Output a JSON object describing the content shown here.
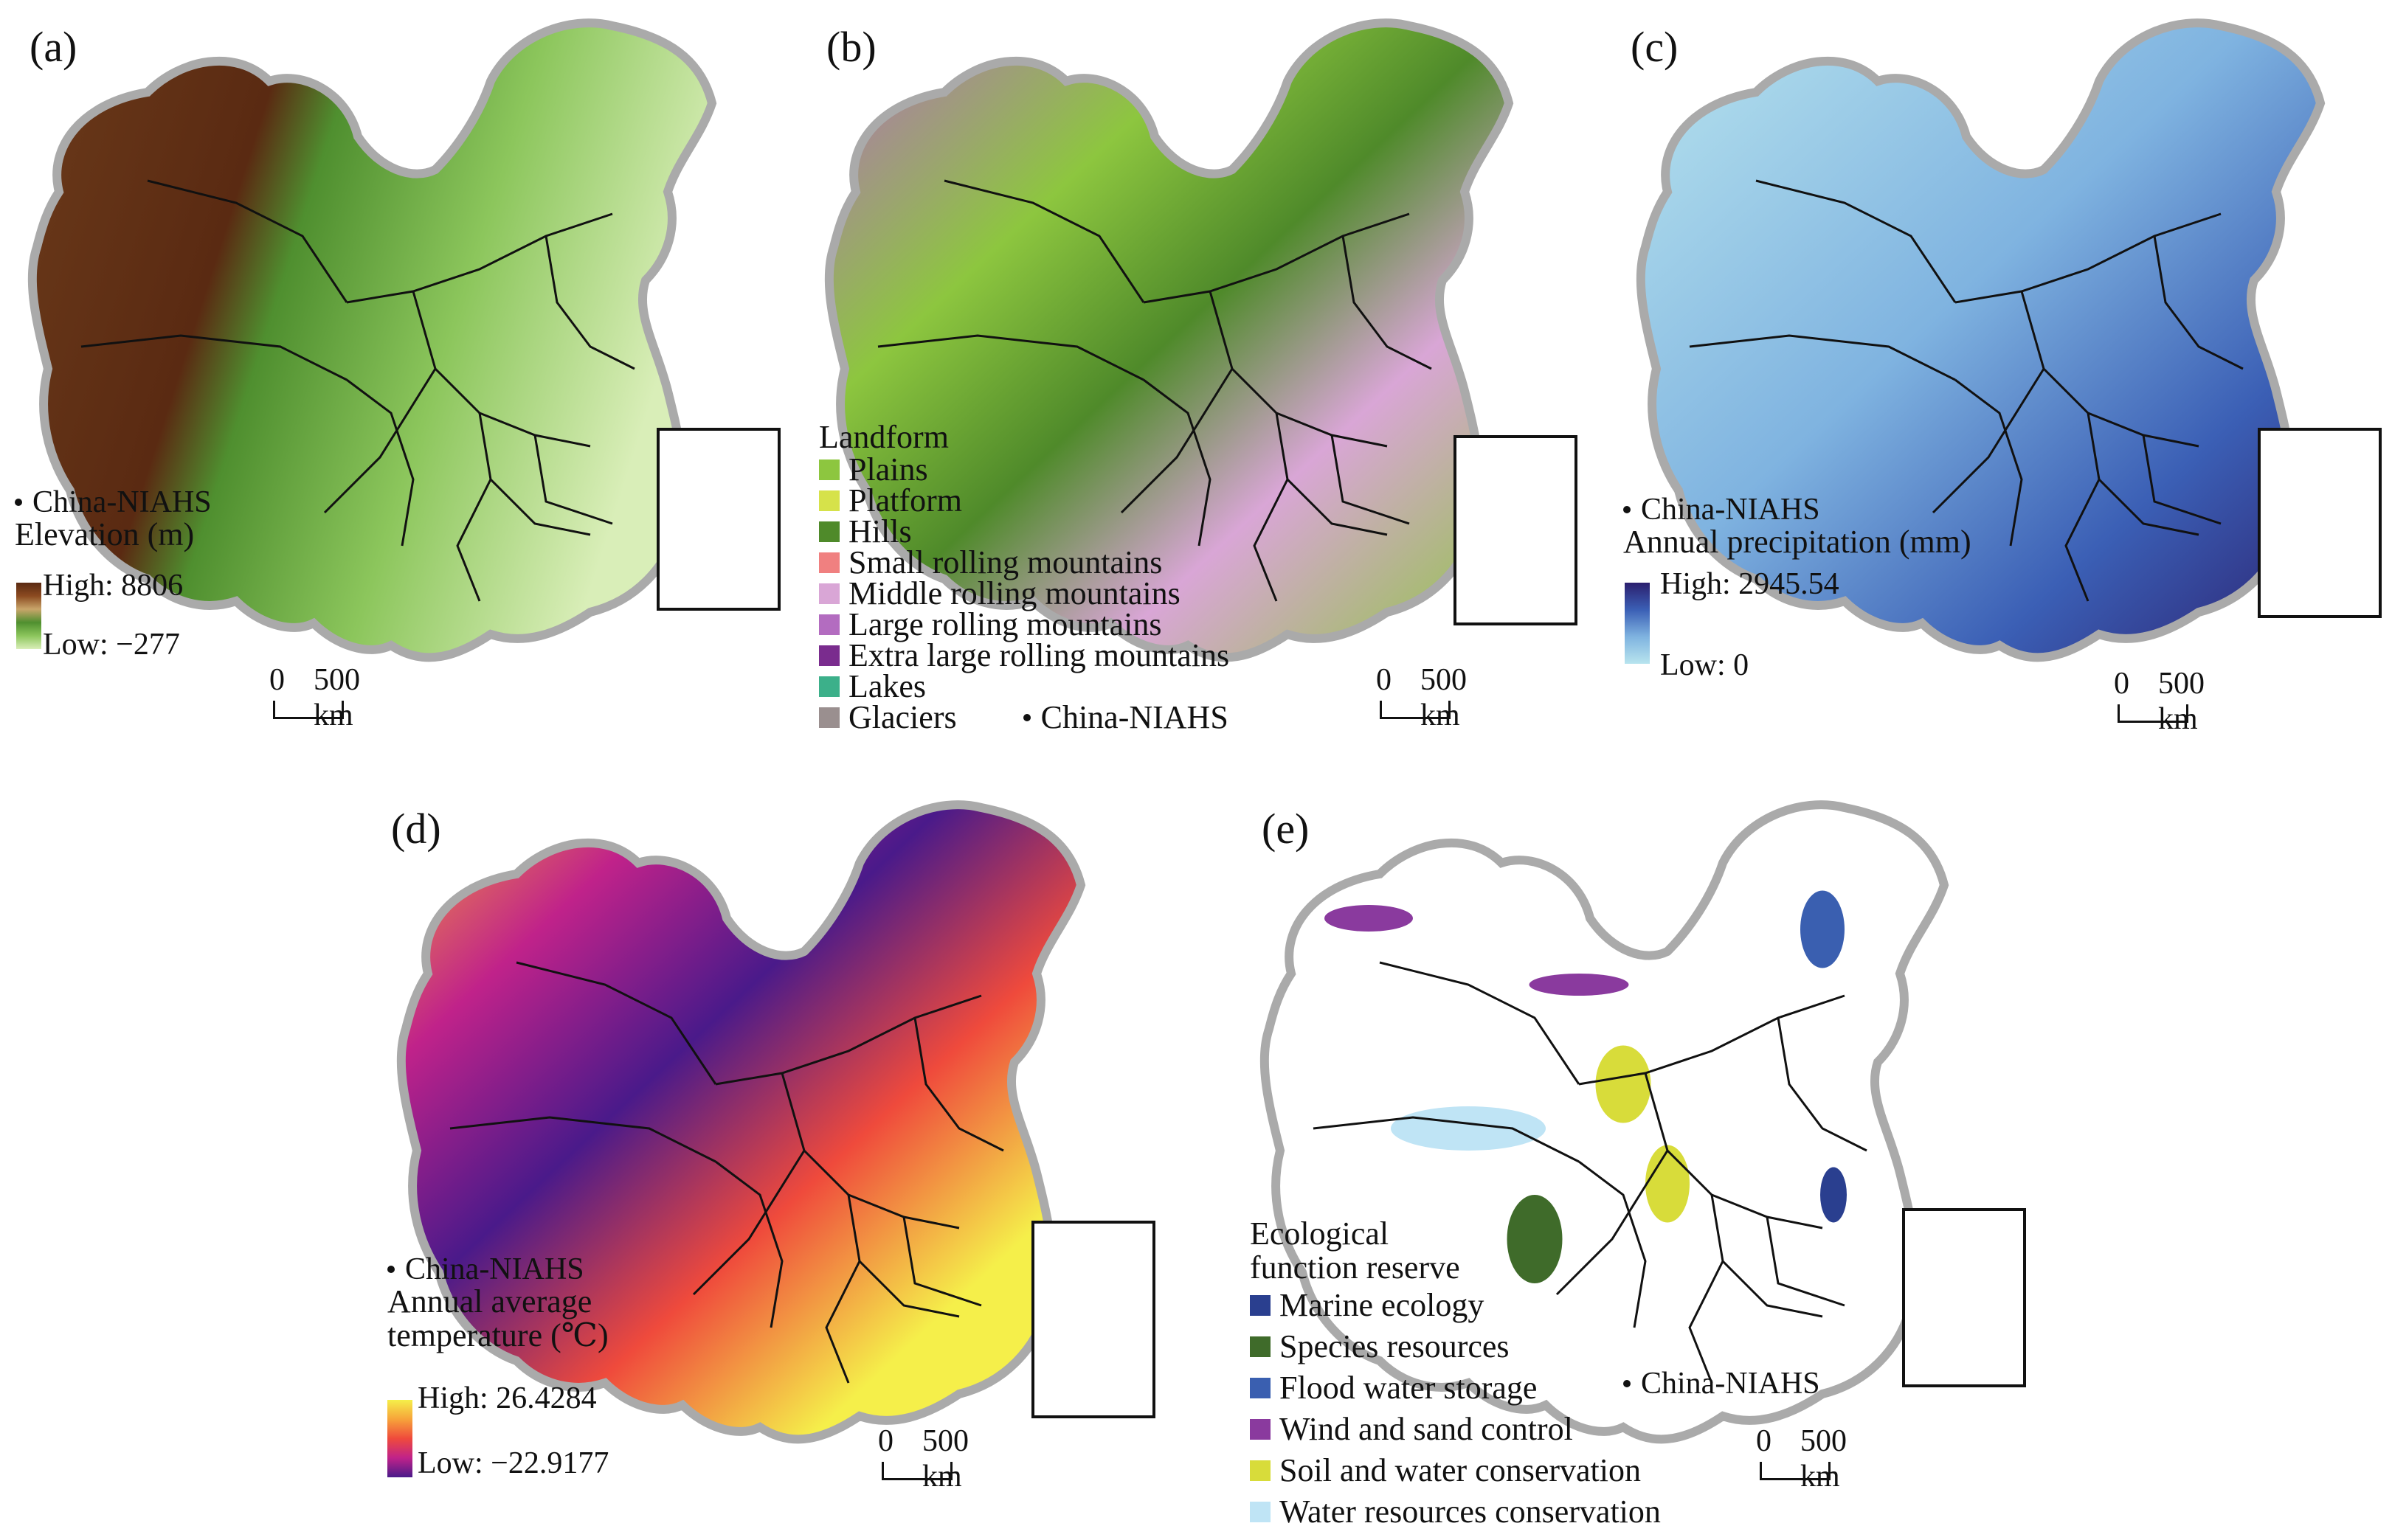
{
  "panels": {
    "a": {
      "label": "(a)",
      "point_label": "China-NIAHS",
      "legend_title": "Elevation (m)",
      "high_label": "High: 8806",
      "low_label": "Low: −277",
      "colors": [
        "#5a2a12",
        "#8b4a20",
        "#c9a56a",
        "#4f8f2f",
        "#8cc65c",
        "#d9eeb8"
      ]
    },
    "b": {
      "label": "(b)",
      "legend_title": "Landform",
      "classes": [
        {
          "label": "Plains",
          "color": "#8dc63f"
        },
        {
          "label": "Platform",
          "color": "#d6e24a"
        },
        {
          "label": "Hills",
          "color": "#4f8a2a"
        },
        {
          "label": "Small rolling mountains",
          "color": "#f08080"
        },
        {
          "label": "Middle rolling mountains",
          "color": "#d9a6d6"
        },
        {
          "label": "Large rolling mountains",
          "color": "#b36cc0"
        },
        {
          "label": "Extra large rolling mountains",
          "color": "#7a2c8e"
        },
        {
          "label": "Lakes",
          "color": "#3cb08a"
        },
        {
          "label": "Glaciers",
          "color": "#9a8f8f"
        }
      ],
      "point_label": "China-NIAHS"
    },
    "c": {
      "label": "(c)",
      "point_label": "China-NIAHS",
      "legend_title": "Annual precipitation (mm)",
      "high_label": "High: 2945.54",
      "low_label": "Low: 0",
      "colors": [
        "#2b1f6e",
        "#3b5fb5",
        "#7fb3e0",
        "#b8e4ee"
      ]
    },
    "d": {
      "label": "(d)",
      "point_label": "China-NIAHS",
      "legend_title_1": "Annual average",
      "legend_title_2": "temperature (℃)",
      "high_label": "High: 26.4284",
      "low_label": "Low: −22.9177",
      "colors": [
        "#f5ef4a",
        "#f7a33a",
        "#ef4a3c",
        "#c0228a",
        "#4a1a8a"
      ]
    },
    "e": {
      "label": "(e)",
      "legend_title_1": "Ecological",
      "legend_title_2": "function reserve",
      "classes": [
        {
          "label": "Marine ecology",
          "color": "#2a3f8f"
        },
        {
          "label": "Species resources",
          "color": "#3f6b2a"
        },
        {
          "label": "Flood water storage",
          "color": "#3a5fb0"
        },
        {
          "label": "Wind and sand control",
          "color": "#8a3a9e"
        },
        {
          "label": "Soil and water conservation",
          "color": "#d8dc3a"
        },
        {
          "label": "Water resources conservation",
          "color": "#bfe4f5"
        }
      ],
      "point_label": "China-NIAHS"
    }
  },
  "scale": {
    "zero": "0",
    "distance": "500 km"
  }
}
